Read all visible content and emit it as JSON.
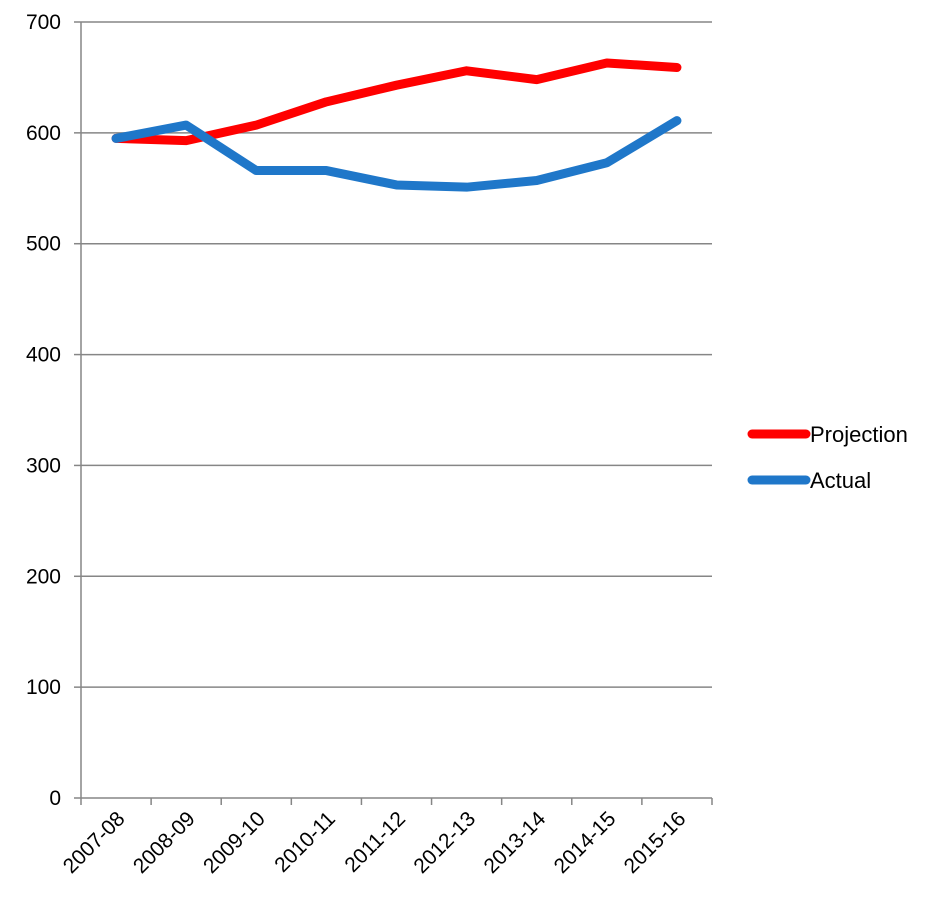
{
  "chart_data": {
    "type": "line",
    "categories": [
      "2007-08",
      "2008-09",
      "2009-10",
      "2010-11",
      "2011-12",
      "2012-13",
      "2013-14",
      "2014-15",
      "2015-16"
    ],
    "series": [
      {
        "name": "Projection",
        "color": "#ff0000",
        "values": [
          595,
          593,
          607,
          628,
          643,
          656,
          648,
          663,
          659
        ]
      },
      {
        "name": "Actual",
        "color": "#1f77c9",
        "values": [
          595,
          607,
          566,
          566,
          553,
          551,
          557,
          573,
          611
        ]
      }
    ],
    "title": "",
    "xlabel": "",
    "ylabel": "",
    "ylim": [
      0,
      700
    ],
    "yticks": [
      "0",
      "100",
      "200",
      "300",
      "400",
      "500",
      "600",
      "700"
    ],
    "grid": true,
    "legend_position": "right"
  }
}
